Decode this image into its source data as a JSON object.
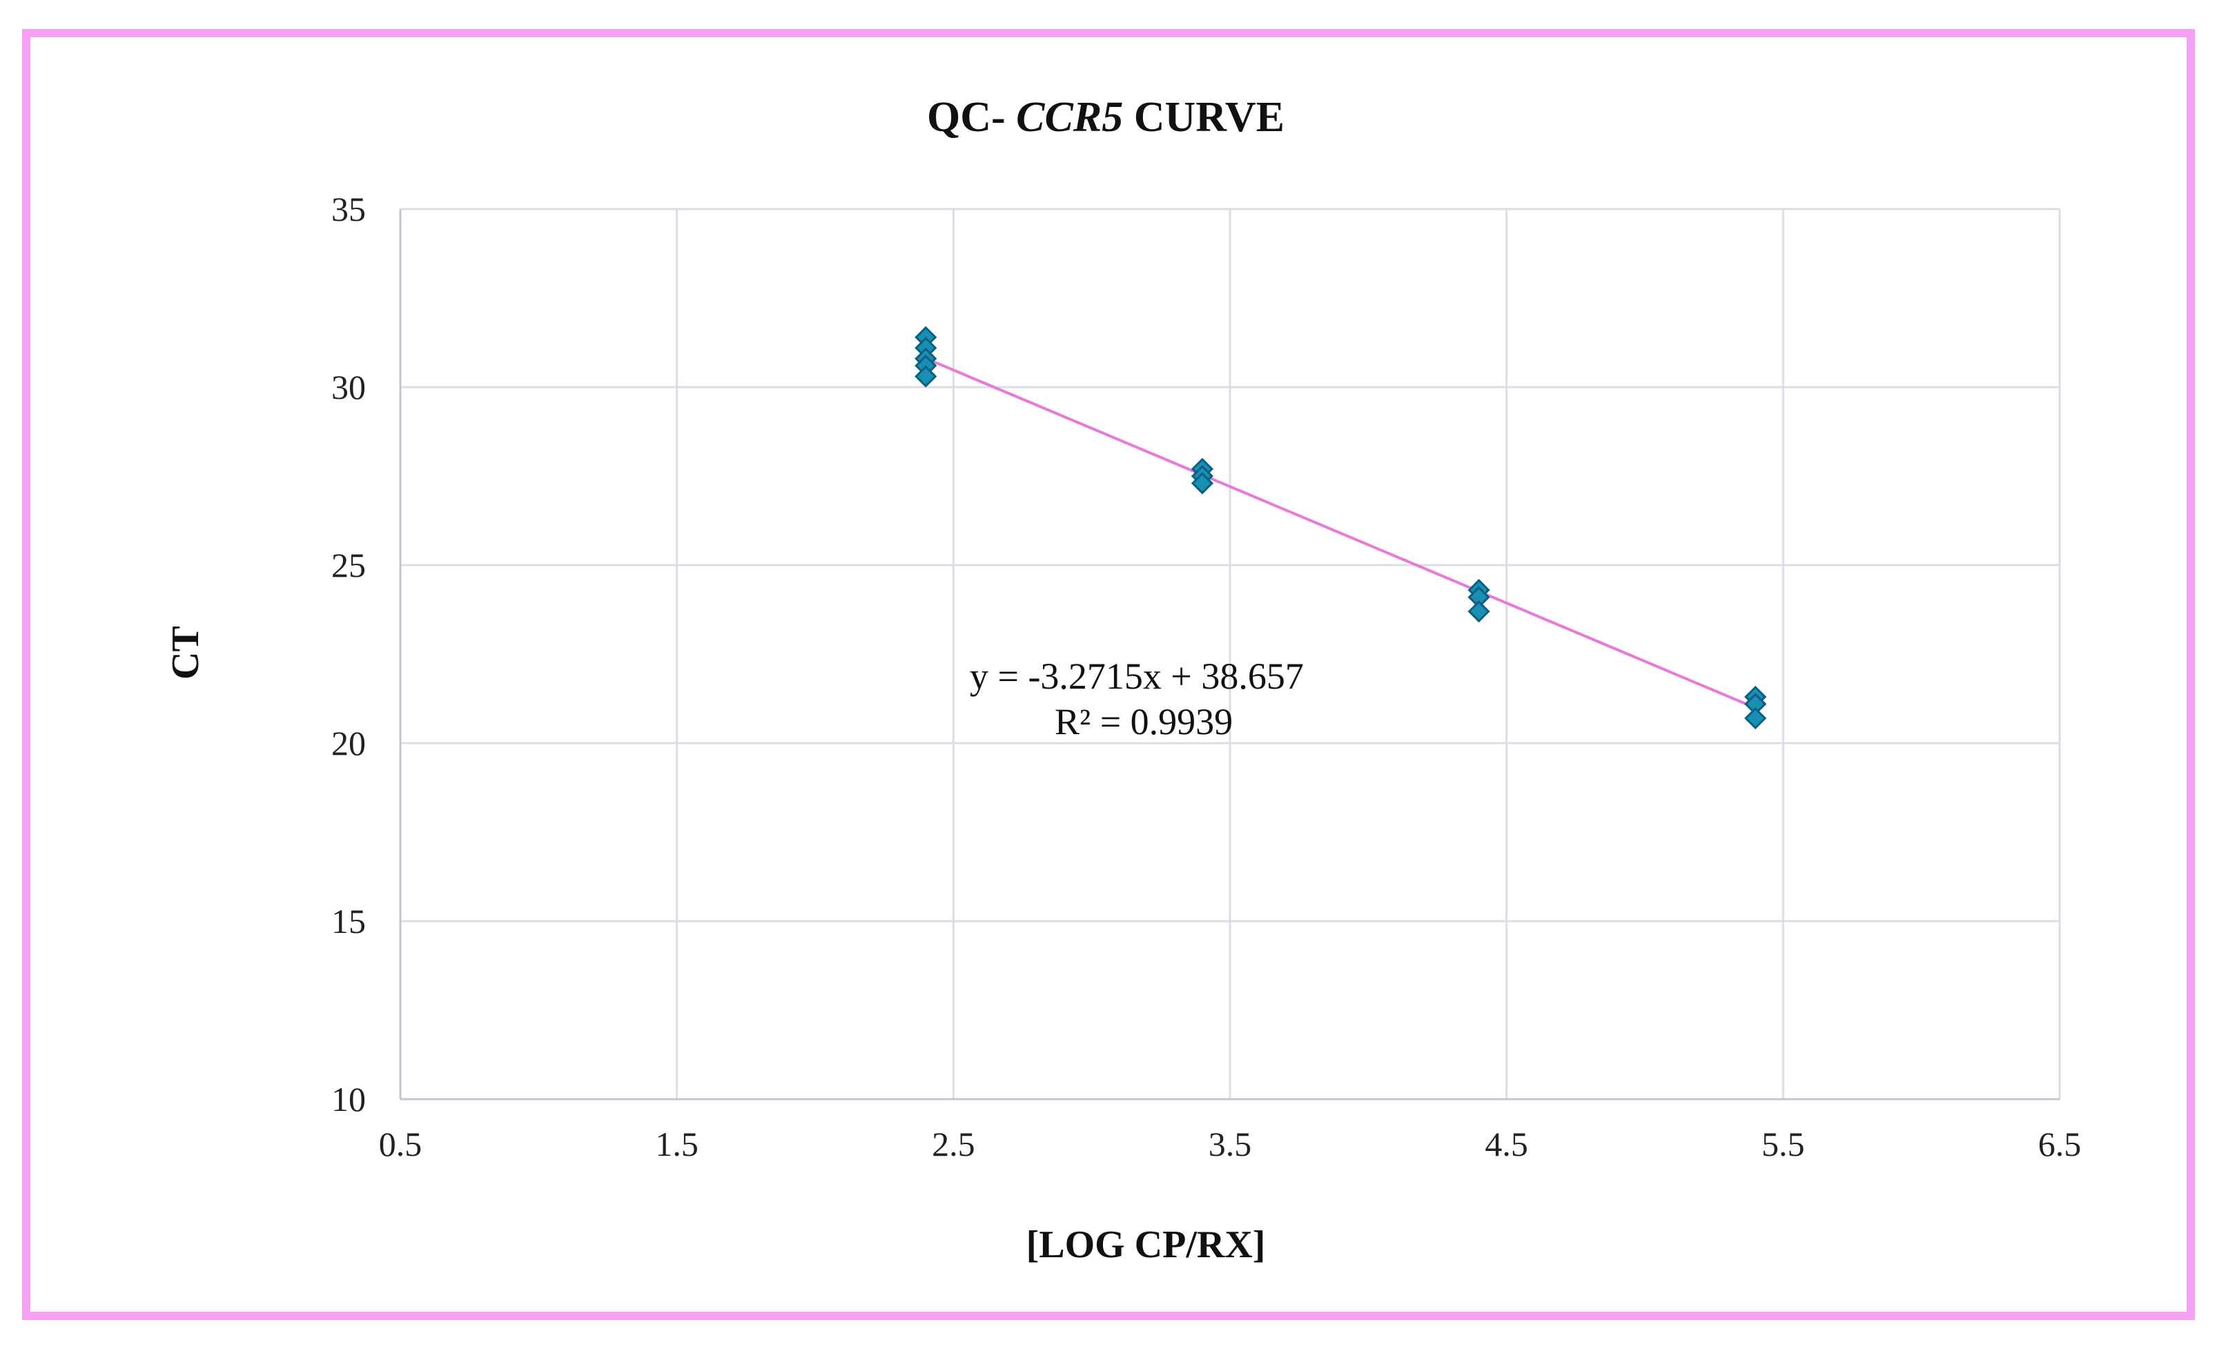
{
  "chart_data": {
    "type": "scatter",
    "title": {
      "prefix": "QC- ",
      "gene": "CCR5",
      "suffix": " CURVE"
    },
    "xlabel": "[LOG CP/RX]",
    "ylabel": "CT",
    "xlim": [
      0.5,
      6.5
    ],
    "ylim": [
      10,
      35
    ],
    "x_ticks": [
      "0.5",
      "1.5",
      "2.5",
      "3.5",
      "4.5",
      "5.5",
      "6.5"
    ],
    "y_ticks": [
      "10",
      "15",
      "20",
      "25",
      "30",
      "35"
    ],
    "grid": true,
    "series": [
      {
        "marker": "diamond",
        "color": "#1a8fb5",
        "points": [
          {
            "x": 2.4,
            "y": 31.4
          },
          {
            "x": 2.4,
            "y": 31.1
          },
          {
            "x": 2.4,
            "y": 30.8
          },
          {
            "x": 2.4,
            "y": 30.6
          },
          {
            "x": 2.4,
            "y": 30.3
          },
          {
            "x": 3.4,
            "y": 27.7
          },
          {
            "x": 3.4,
            "y": 27.5
          },
          {
            "x": 3.4,
            "y": 27.3
          },
          {
            "x": 4.4,
            "y": 24.3
          },
          {
            "x": 4.4,
            "y": 24.1
          },
          {
            "x": 4.4,
            "y": 23.7
          },
          {
            "x": 5.4,
            "y": 21.3
          },
          {
            "x": 5.4,
            "y": 21.1
          },
          {
            "x": 5.4,
            "y": 20.7
          }
        ]
      }
    ],
    "trendline": {
      "slope": -3.2715,
      "intercept": 38.657,
      "x_range": [
        2.4,
        5.4
      ],
      "color": "#e77ad8",
      "equation_label": "y = -3.2715x + 38.657",
      "r2_label": "R² = 0.9939"
    }
  },
  "colors": {
    "frame_border": "#f7a1f4",
    "marker_fill": "#1a8fb5",
    "marker_stroke": "#0b5f80",
    "trendline": "#e77ad8"
  }
}
